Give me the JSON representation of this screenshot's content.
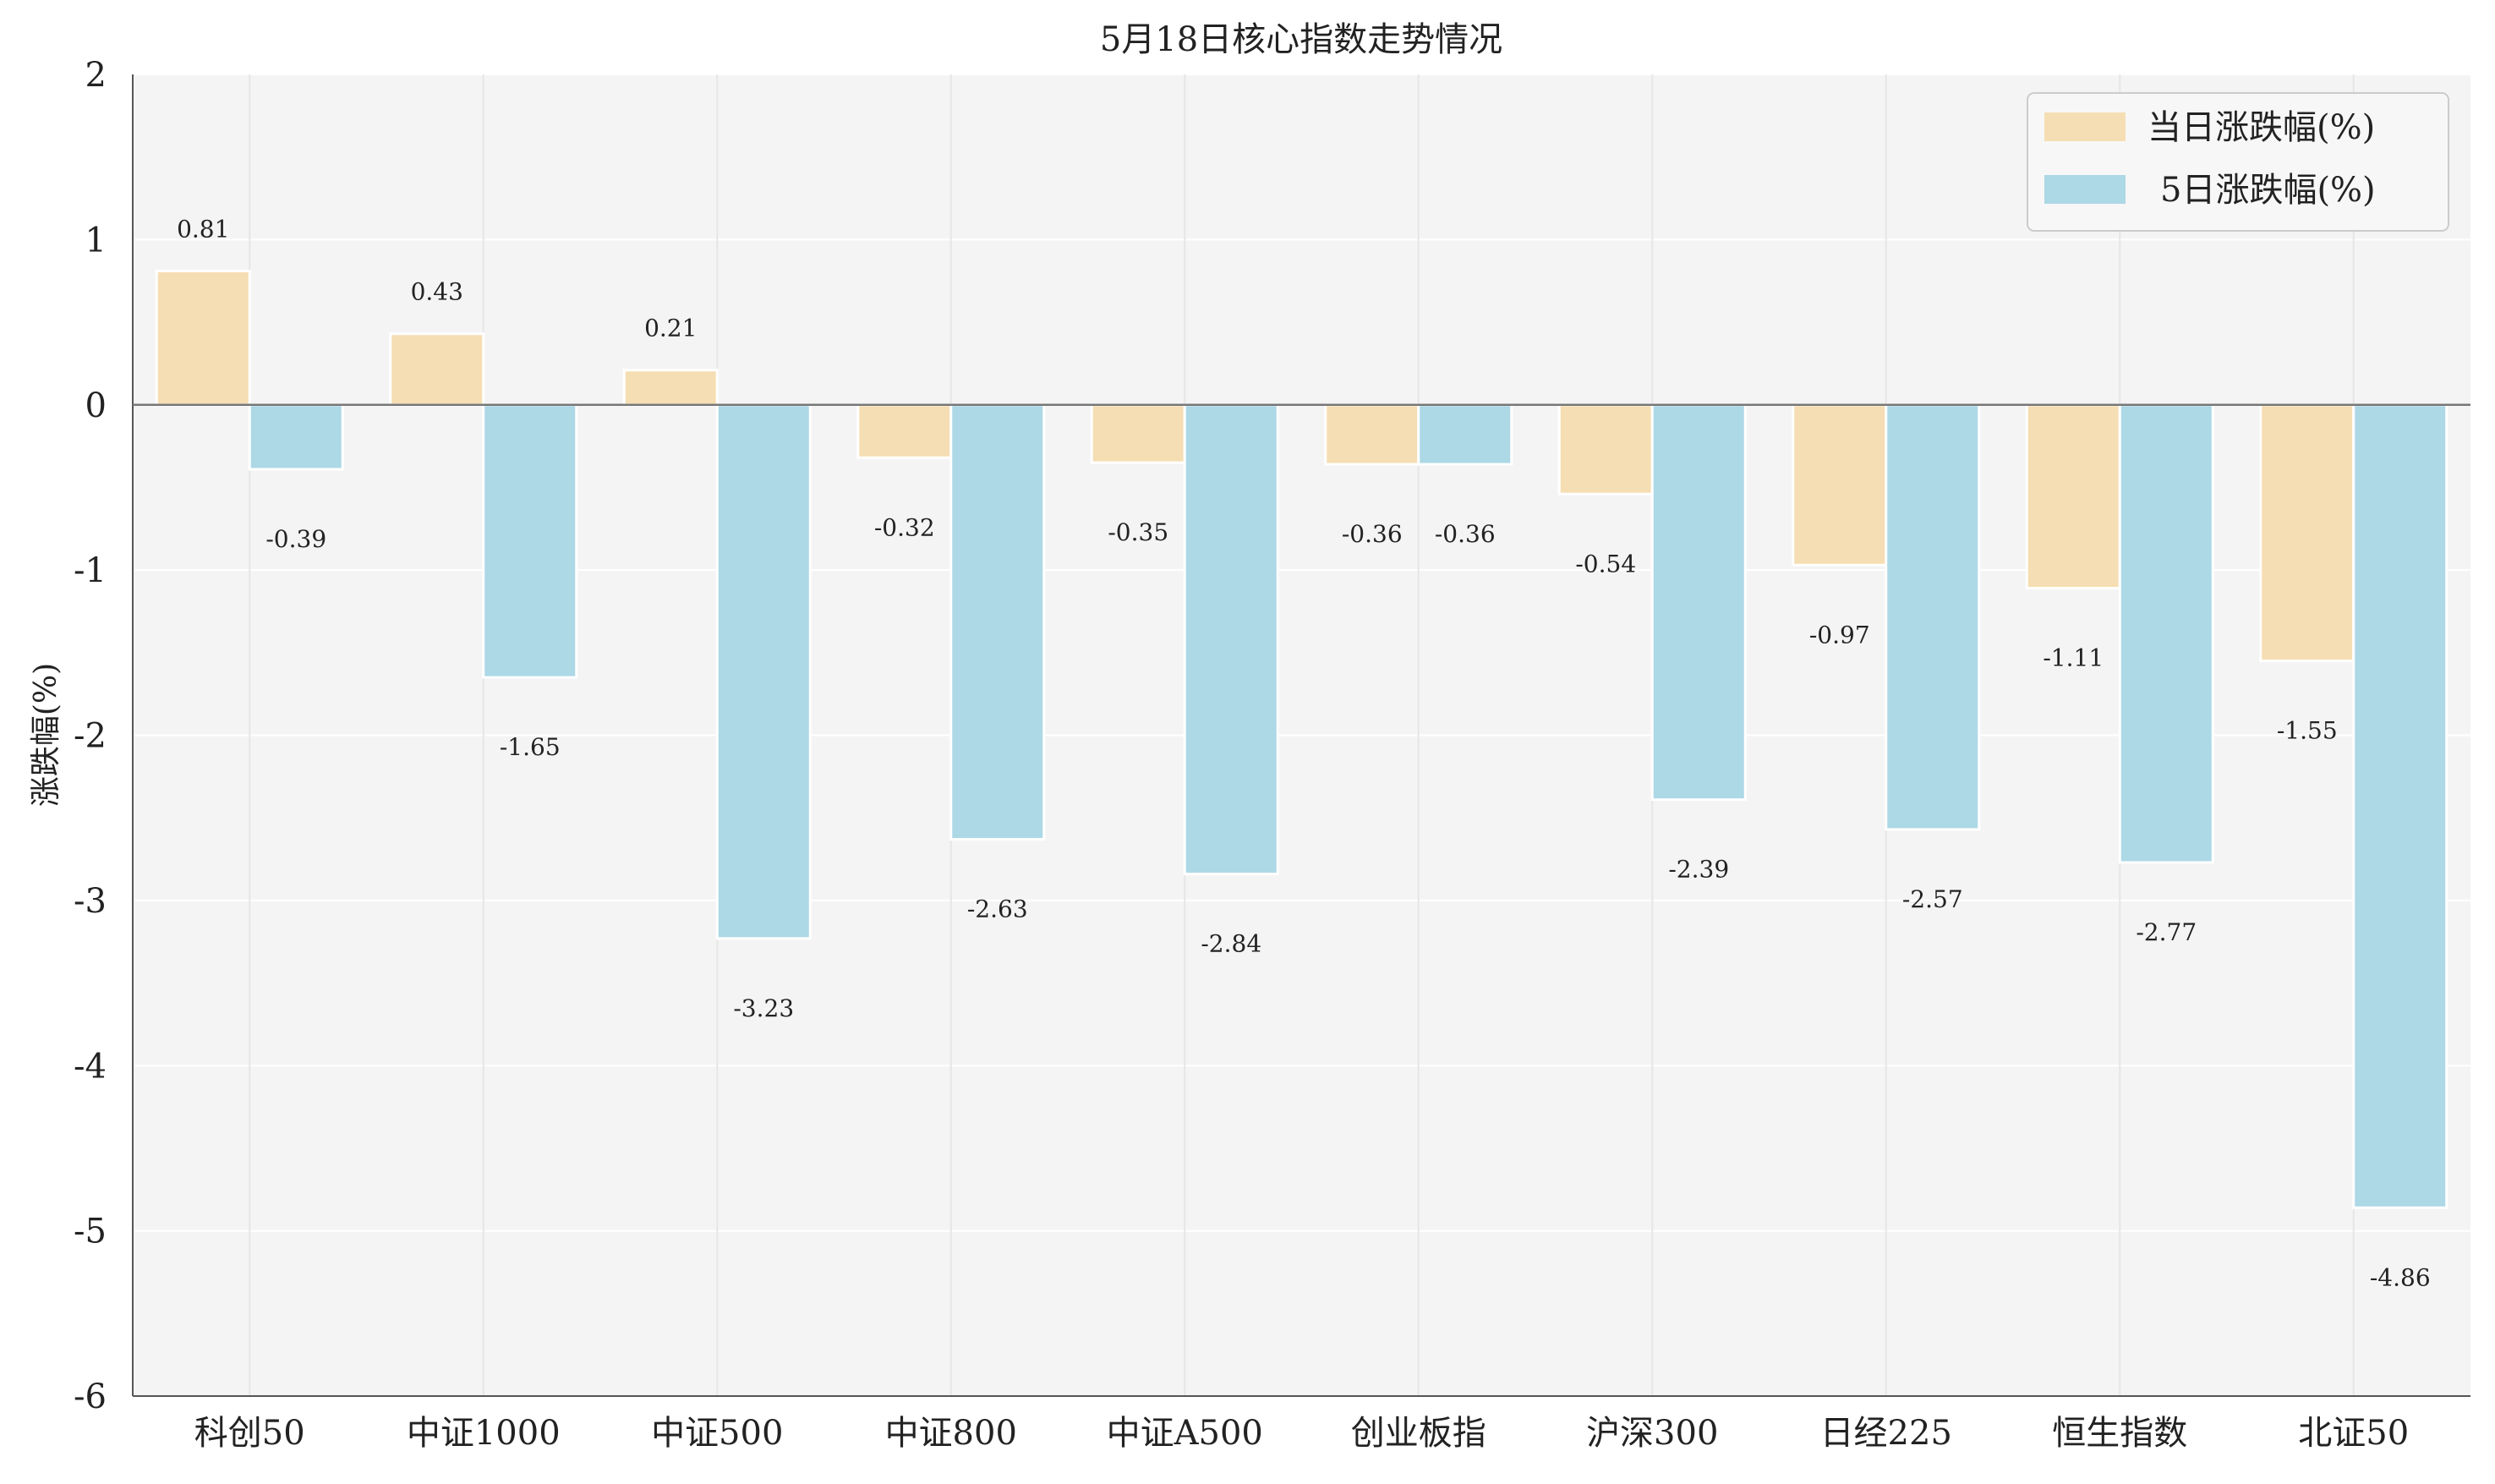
{
  "chart_data": {
    "type": "bar",
    "title": "5月18日核心指数走势情况",
    "xlabel": "",
    "ylabel": "涨跌幅(%)",
    "ylim": [
      -6,
      2
    ],
    "yticks": [
      2,
      1,
      0,
      -1,
      -2,
      -3,
      -4,
      -5,
      -6
    ],
    "grid": true,
    "legend_position": "top-right",
    "categories": [
      "科创50",
      "中证1000",
      "中证500",
      "中证800",
      "中证A500",
      "创业板指",
      "沪深300",
      "日经225",
      "恒生指数",
      "北证50"
    ],
    "series": [
      {
        "name": "当日涨跌幅(%)",
        "color": "#F5DEB3",
        "values": [
          0.81,
          0.43,
          0.21,
          -0.32,
          -0.35,
          -0.36,
          -0.54,
          -0.97,
          -1.11,
          -1.55
        ]
      },
      {
        "name": "5日涨跌幅(%)",
        "color": "#ADD8E6",
        "values": [
          -0.39,
          -1.65,
          -3.23,
          -2.63,
          -2.84,
          -0.36,
          -2.39,
          -2.57,
          -2.77,
          -4.86
        ]
      }
    ]
  }
}
